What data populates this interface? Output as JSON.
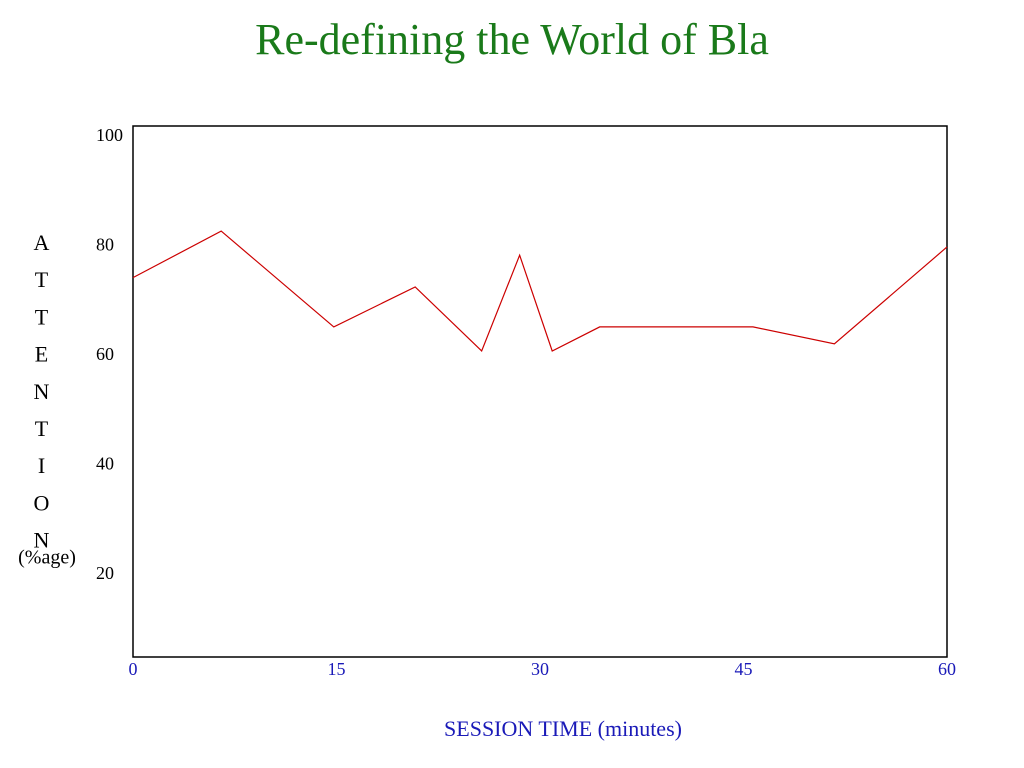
{
  "chart_data": {
    "type": "line",
    "title": "Re-defining the World of Bla",
    "x_label": "SESSION TIME (minutes)",
    "y_label": "ATTENTION",
    "y_label_unit": "(%age)",
    "x": [
      0,
      6.5,
      14.8,
      20.8,
      25.7,
      28.5,
      30.9,
      34.4,
      45.7,
      51.7,
      60
    ],
    "series": [
      {
        "name": "Attention",
        "color": "#cc0000",
        "values": [
          74.3,
          82.8,
          65.3,
          72.6,
          60.9,
          78.4,
          60.9,
          65.3,
          65.3,
          62.2,
          79.9
        ]
      }
    ],
    "xlim": [
      0,
      60
    ],
    "xticks": [
      0,
      15,
      30,
      45,
      60
    ],
    "ylim": [
      5,
      102
    ],
    "yticks": [
      20,
      40,
      60,
      80,
      100
    ],
    "grid": false,
    "legend": false
  }
}
